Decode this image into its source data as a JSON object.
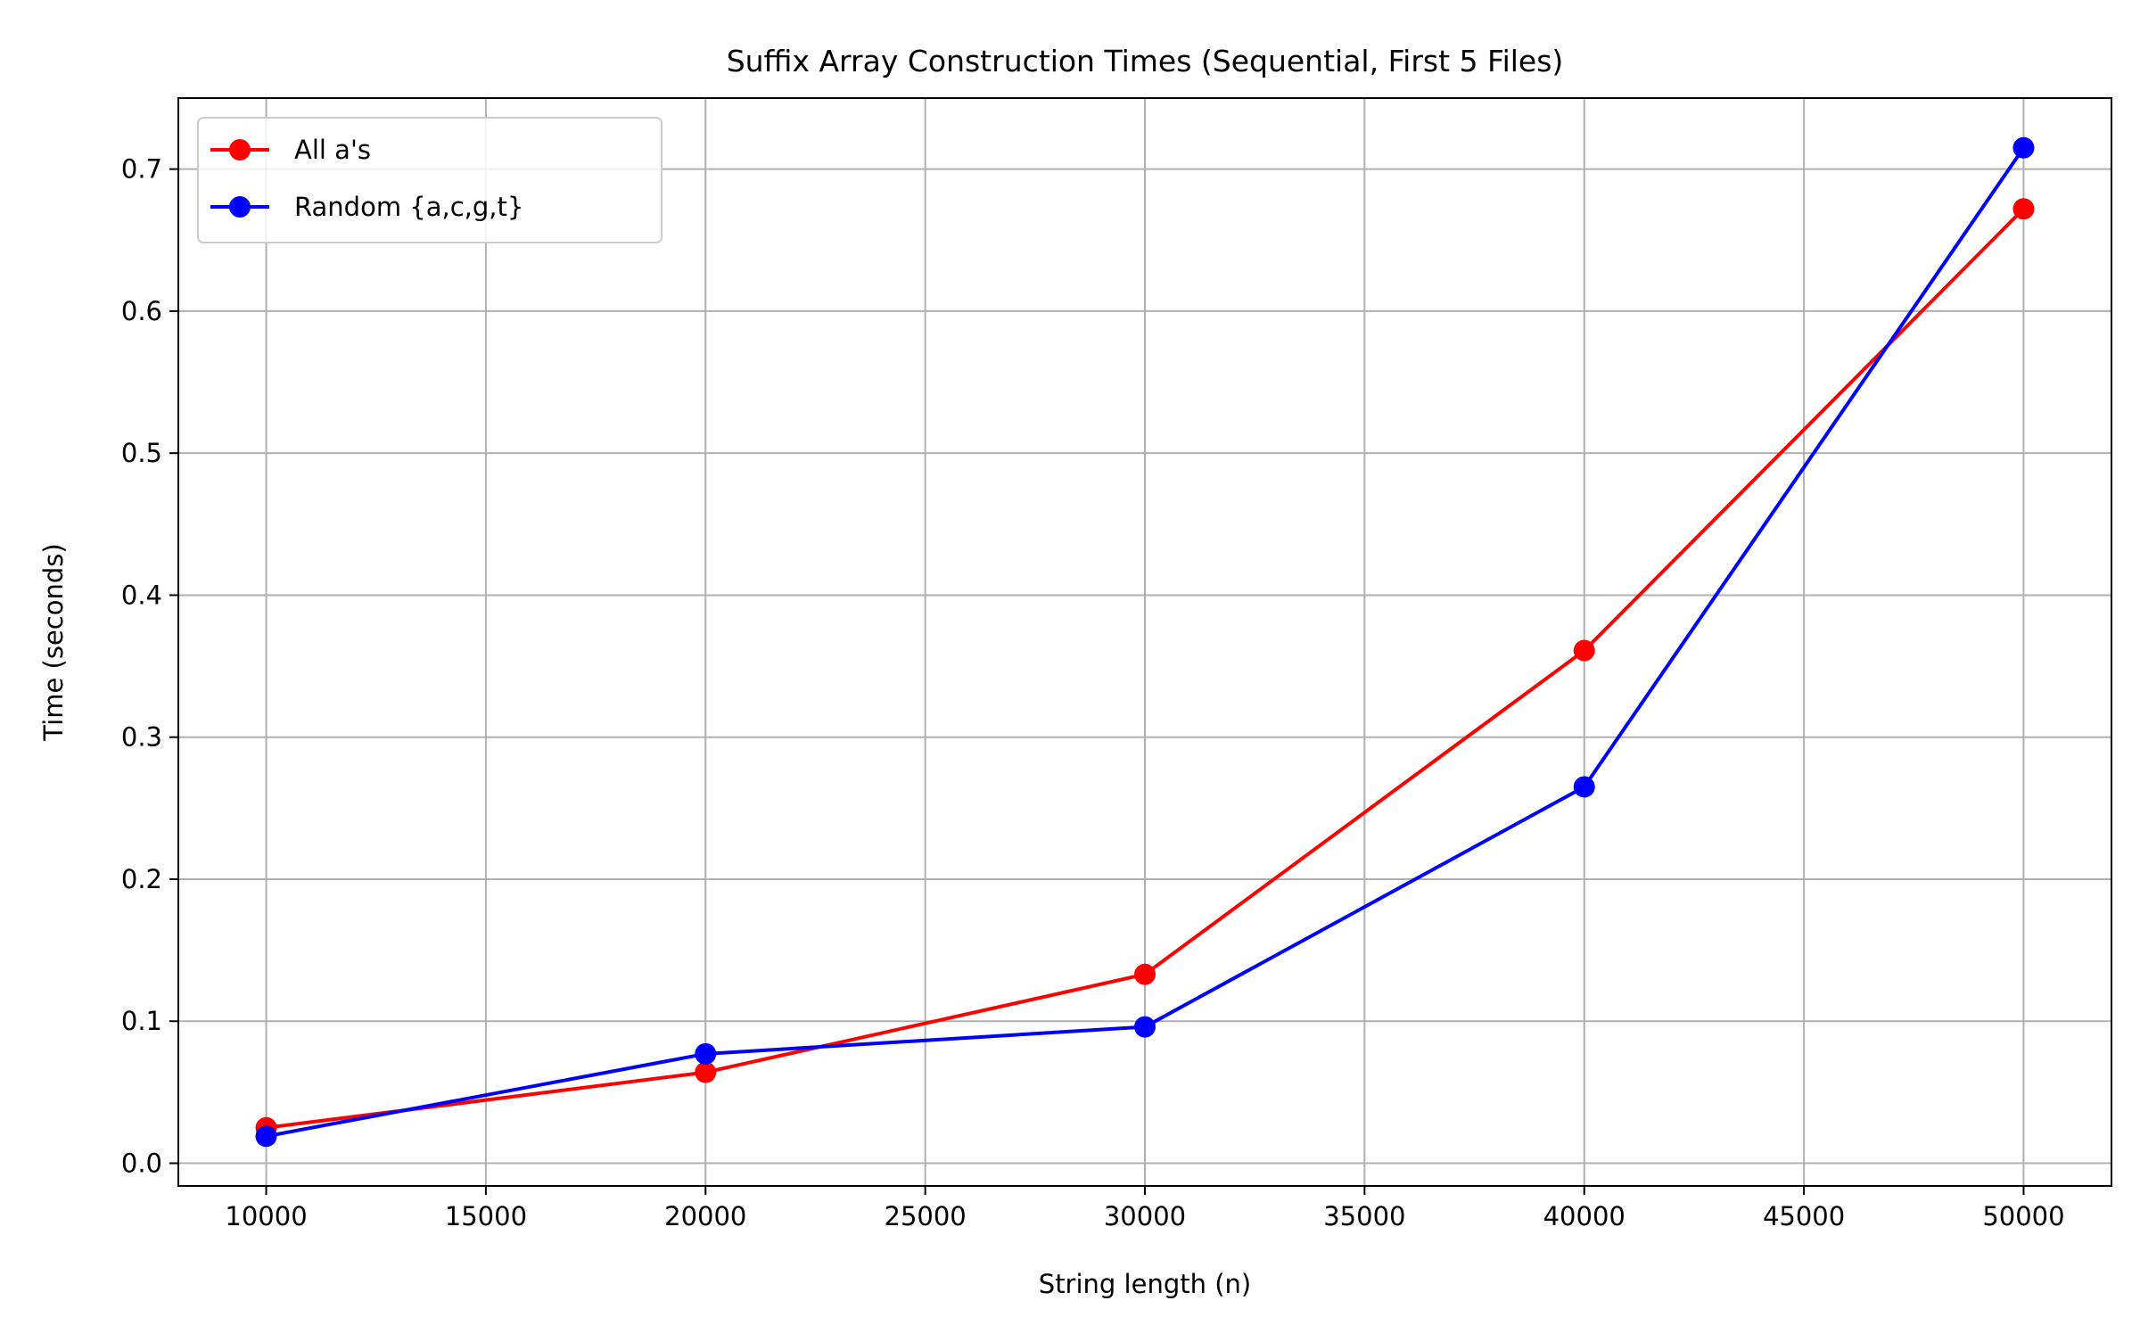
{
  "chart_data": {
    "type": "line",
    "title": "Suffix Array Construction Times (Sequential, First 5 Files)",
    "xlabel": "String length (n)",
    "ylabel": "Time (seconds)",
    "x": [
      10000,
      20000,
      30000,
      40000,
      50000
    ],
    "series": [
      {
        "name": "All a's",
        "color": "#ff0000",
        "values": [
          0.025,
          0.064,
          0.133,
          0.361,
          0.672
        ]
      },
      {
        "name": "Random {a,c,g,t}",
        "color": "#0000ff",
        "values": [
          0.019,
          0.077,
          0.096,
          0.265,
          0.715
        ]
      }
    ],
    "xlim": [
      8000,
      52000
    ],
    "ylim": [
      -0.016,
      0.75
    ],
    "xticks": [
      10000,
      15000,
      20000,
      25000,
      30000,
      35000,
      40000,
      45000,
      50000
    ],
    "yticks": [
      0.0,
      0.1,
      0.2,
      0.3,
      0.4,
      0.5,
      0.6,
      0.7
    ],
    "xtick_labels": [
      "10000",
      "15000",
      "20000",
      "25000",
      "30000",
      "35000",
      "40000",
      "45000",
      "50000"
    ],
    "ytick_labels": [
      "0.0",
      "0.1",
      "0.2",
      "0.3",
      "0.4",
      "0.5",
      "0.6",
      "0.7"
    ],
    "grid": true,
    "legend_position": "top-left",
    "marker": "circle"
  }
}
